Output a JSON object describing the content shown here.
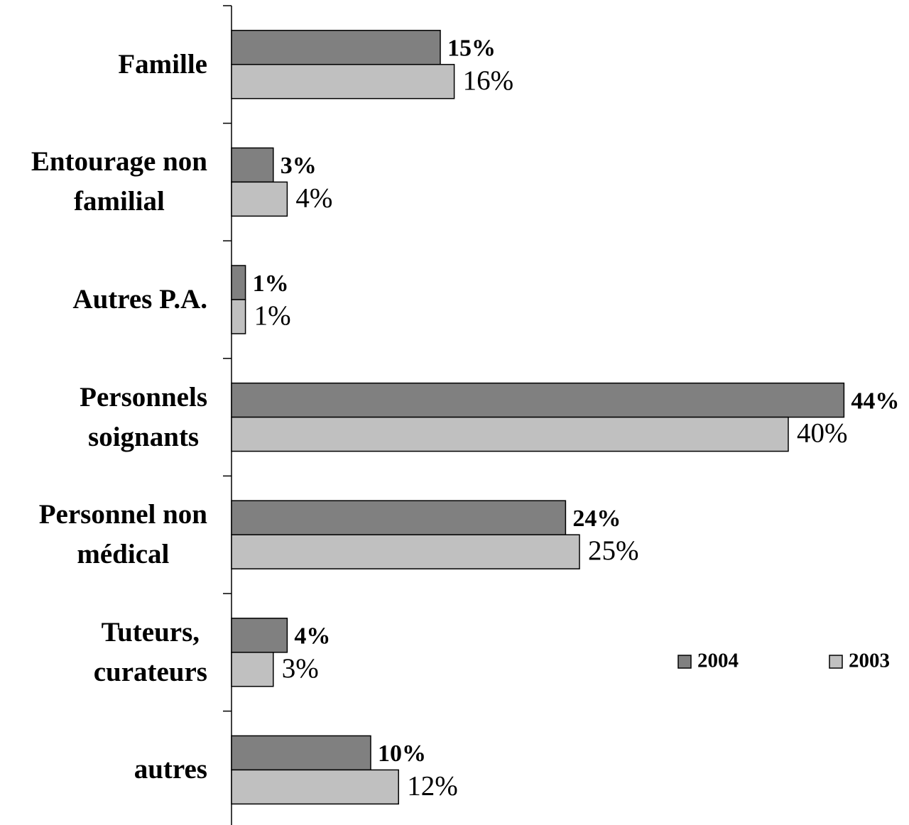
{
  "chart_data": {
    "type": "hbar",
    "categories": [
      "Famille",
      "Entourage non\nfamilial",
      "Autres P.A.",
      "Personnels\nsoignants",
      "Personnel non\nmédical",
      "Tuteurs,\ncurateurs",
      "autres"
    ],
    "series": [
      {
        "name": "2004",
        "color": "#808080",
        "values": [
          15,
          3,
          1,
          44,
          24,
          4,
          10
        ],
        "value_labels": [
          "15%",
          "3%",
          "1%",
          "44%",
          "24%",
          "4%",
          "10%"
        ]
      },
      {
        "name": "2003",
        "color": "#c0c0c0",
        "values": [
          16,
          4,
          1,
          40,
          25,
          3,
          12
        ],
        "value_labels": [
          "16%",
          "4%",
          "1%",
          "40%",
          "25%",
          "3%",
          "12%"
        ]
      }
    ],
    "xlim": [
      0,
      48
    ],
    "legend": "right"
  }
}
